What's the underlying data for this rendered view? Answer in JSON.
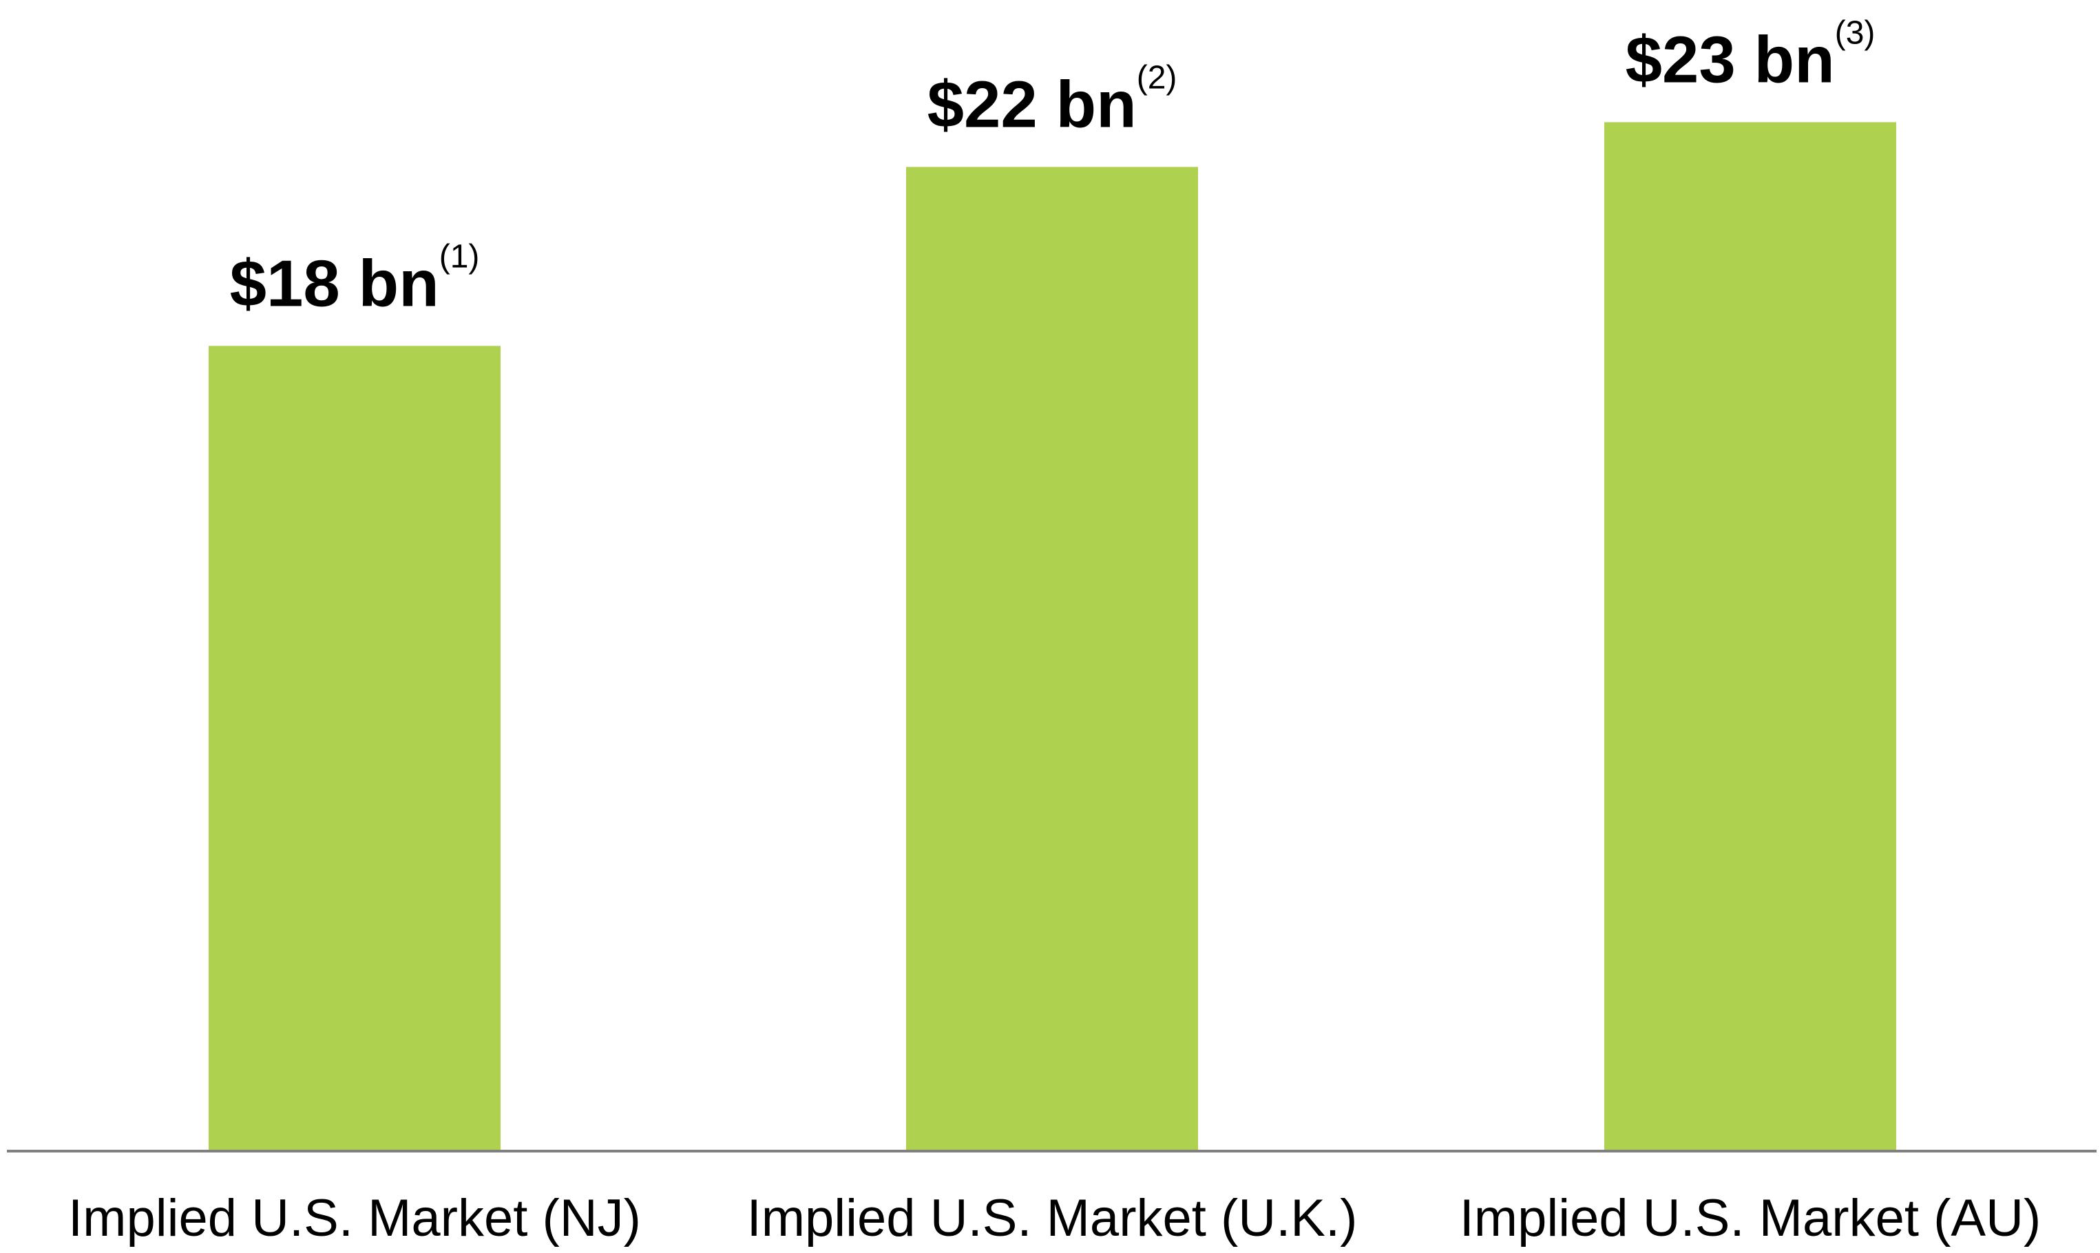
{
  "chart_data": {
    "type": "bar",
    "categories": [
      "Implied U.S. Market (NJ)",
      "Implied U.S. Market (U.K.)",
      "Implied U.S. Market (AU)"
    ],
    "values": [
      18,
      22,
      23
    ],
    "data_labels": [
      "$18 bn",
      "$22 bn",
      "$23 bn"
    ],
    "data_label_notes": [
      "(1)",
      "(2)",
      "(3)"
    ],
    "ylim": [
      0,
      23.5
    ],
    "grid": false,
    "colors": {
      "bar": "#AED14F",
      "axis": "#808080"
    }
  }
}
